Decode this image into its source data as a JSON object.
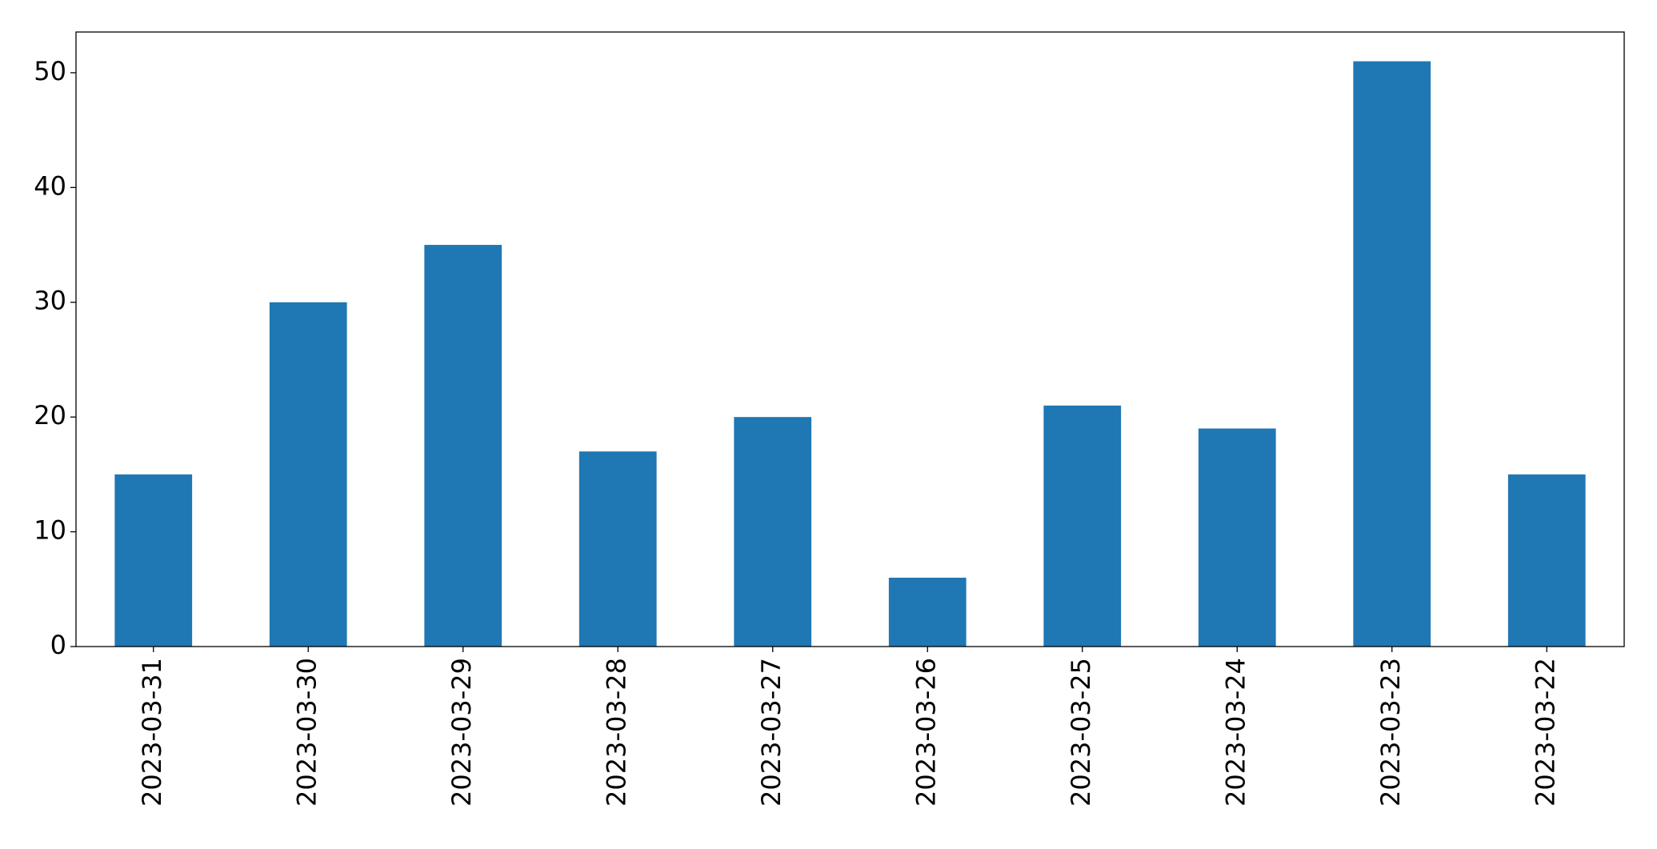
{
  "chart_data": {
    "type": "bar",
    "categories": [
      "2023-03-31",
      "2023-03-30",
      "2023-03-29",
      "2023-03-28",
      "2023-03-27",
      "2023-03-26",
      "2023-03-25",
      "2023-03-24",
      "2023-03-23",
      "2023-03-22"
    ],
    "values": [
      15,
      30,
      35,
      17,
      20,
      6,
      21,
      19,
      51,
      15
    ],
    "color": "#1f77b4",
    "ylim": [
      0,
      53.55
    ],
    "yticks": [
      0,
      10,
      20,
      30,
      40,
      50
    ],
    "grid": false
  }
}
